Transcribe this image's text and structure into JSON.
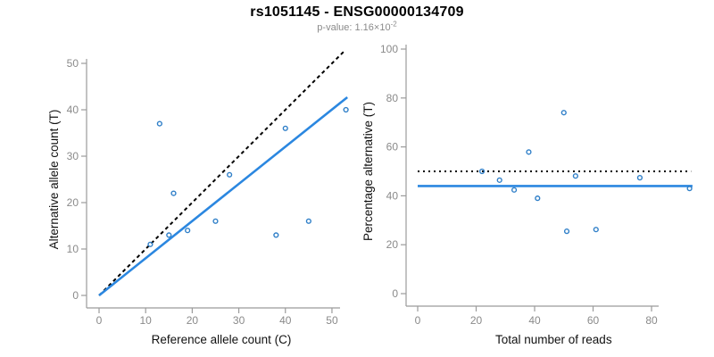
{
  "title": "rs1051145 - ENSG00000134709",
  "subtitle": {
    "base_text": "p-value: 1.16×10",
    "exponent": "-2"
  },
  "colors": {
    "regression_blue": "#2b87e0",
    "point_blue": "#2f7fc8",
    "reference_black": "#000000",
    "tick_text_gray": "#8a8a8a",
    "spine_gray": "#9b9b9b",
    "background": "#ffffff"
  },
  "chart_data": [
    {
      "type": "scatter",
      "panel": "left",
      "xlabel": "Reference allele count (C)",
      "ylabel": "Alternative allele count (T)",
      "xlim": [
        0,
        52.5
      ],
      "ylim": [
        0,
        50
      ],
      "xticks": [
        0,
        10,
        20,
        30,
        40,
        50
      ],
      "yticks": [
        0,
        10,
        20,
        30,
        40,
        50
      ],
      "grid": false,
      "points": [
        [
          11,
          11
        ],
        [
          13,
          37
        ],
        [
          15,
          13
        ],
        [
          16,
          22
        ],
        [
          19,
          14
        ],
        [
          25,
          16
        ],
        [
          28,
          26
        ],
        [
          38,
          13
        ],
        [
          40,
          36
        ],
        [
          45,
          16
        ],
        [
          53,
          40
        ]
      ],
      "lines": [
        {
          "name": "identity-reference",
          "style": "dashed",
          "color": "#000000",
          "from": [
            0,
            0
          ],
          "to": [
            52.5,
            52.5
          ]
        },
        {
          "name": "regression-fit",
          "style": "solid",
          "color": "#2b87e0",
          "from": [
            0,
            0
          ],
          "to": [
            53.3,
            42.7
          ]
        }
      ]
    },
    {
      "type": "scatter",
      "panel": "right",
      "xlabel": "Total number of reads",
      "ylabel": "Percentage alternative (T)",
      "xlim": [
        0,
        93
      ],
      "ylim": [
        0,
        100
      ],
      "xticks": [
        0,
        20,
        40,
        60,
        80
      ],
      "yticks": [
        0,
        20,
        40,
        60,
        80,
        100
      ],
      "grid": false,
      "points": [
        [
          22,
          50
        ],
        [
          28,
          46.4
        ],
        [
          33,
          42.4
        ],
        [
          38,
          57.9
        ],
        [
          41,
          39
        ],
        [
          50,
          74
        ],
        [
          51,
          25.5
        ],
        [
          54,
          48.1
        ],
        [
          61,
          26.2
        ],
        [
          76,
          47.4
        ],
        [
          93,
          43
        ]
      ],
      "lines": [
        {
          "name": "expected-fifty-percent",
          "style": "dotted",
          "color": "#000000",
          "y": 50,
          "span": [
            0,
            93.5
          ]
        },
        {
          "name": "mean-percentage",
          "style": "solid",
          "color": "#2b87e0",
          "y": 44,
          "span": [
            0,
            94
          ]
        }
      ]
    }
  ]
}
